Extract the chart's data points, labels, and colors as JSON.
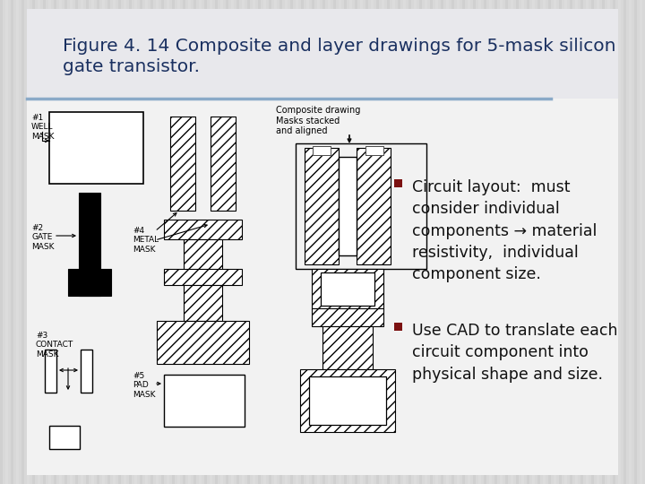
{
  "title_line1": "Figure 4. 14 Composite and layer drawings for 5-mask silicon",
  "title_line2": "gate transistor.",
  "title_color": "#1a3060",
  "bg_color": "#d8d8d8",
  "slide_bg": "#e8e8ec",
  "white_panel_color": "#ffffff",
  "bullet_color": "#7b1111",
  "bullet1": "Circuit layout:  must\nconsider individual\ncomponents → material\nresistivity,  individual\ncomponent size.",
  "bullet2": "Use CAD to translate each\ncircuit component into\nphysical shape and size.",
  "text_color": "#111111",
  "body_font_size": 12.5,
  "title_font_size": 14.5,
  "divider_color": "#8aaac8",
  "composite_label": "Composite drawing\nMasks stacked\nand aligned"
}
